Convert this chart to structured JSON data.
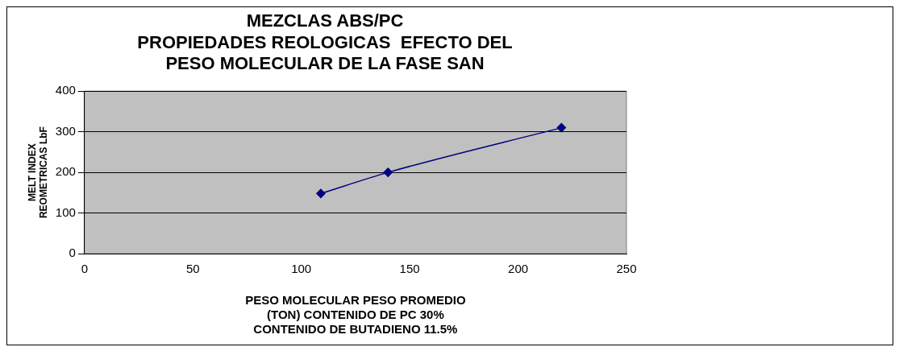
{
  "chart_data": {
    "type": "line",
    "title": "MEZCLAS ABS/PC\nPROPIEDADES REOLOGICAS  EFECTO DEL\nPESO MOLECULAR DE LA FASE SAN",
    "xlabel": "PESO MOLECULAR PESO PROMEDIO\n(TON) CONTENIDO DE PC 30%\nCONTENIDO DE BUTADIENO 11.5%",
    "ylabel": "MELT INDEX\nREOMETRICAS LbF",
    "series": [
      {
        "color": "#000080",
        "x": [
          109,
          140,
          220
        ],
        "values": [
          148,
          200,
          310
        ]
      }
    ],
    "xlim": [
      0,
      250
    ],
    "xticks": [
      0,
      50,
      100,
      150,
      200,
      250
    ],
    "ylim": [
      0,
      400
    ],
    "yticks": [
      0,
      100,
      200,
      300,
      400
    ],
    "grid": "y",
    "marker": "diamond",
    "line_style": "solid",
    "legend": false
  }
}
